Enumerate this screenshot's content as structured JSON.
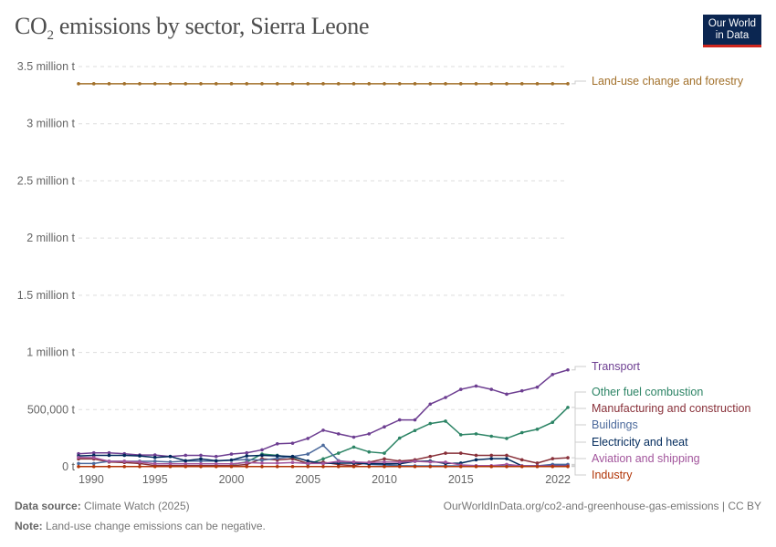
{
  "header": {
    "title_prefix": "CO",
    "title_sub": "2",
    "title_suffix": " emissions by sector, Sierra Leone",
    "logo_line1": "Our World",
    "logo_line2": "in Data"
  },
  "footer": {
    "source_label": "Data source:",
    "source_value": "Climate Watch (2025)",
    "url": "OurWorldInData.org/co2-and-greenhouse-gas-emissions | CC BY",
    "note_label": "Note:",
    "note_value": "Land-use change emissions can be negative."
  },
  "chart_data": {
    "type": "line",
    "title": "CO₂ emissions by sector, Sierra Leone",
    "xlabel": "",
    "ylabel": "",
    "ylim": [
      0,
      3500000
    ],
    "xlim": [
      1990,
      2022
    ],
    "grid": "horizontal dashed",
    "legend": "right (line-end labels)",
    "y_ticks": [
      {
        "value": 0,
        "label": "0 t"
      },
      {
        "value": 500000,
        "label": "500,000 t"
      },
      {
        "value": 1000000,
        "label": "1 million t"
      },
      {
        "value": 1500000,
        "label": "1.5 million t"
      },
      {
        "value": 2000000,
        "label": "2 million t"
      },
      {
        "value": 2500000,
        "label": "2.5 million t"
      },
      {
        "value": 3000000,
        "label": "3 million t"
      },
      {
        "value": 3500000,
        "label": "3.5 million t"
      }
    ],
    "x_ticks": [
      {
        "value": 1990,
        "label": "1990"
      },
      {
        "value": 1995,
        "label": "1995"
      },
      {
        "value": 2000,
        "label": "2000"
      },
      {
        "value": 2005,
        "label": "2005"
      },
      {
        "value": 2010,
        "label": "2010"
      },
      {
        "value": 2015,
        "label": "2015"
      },
      {
        "value": 2022,
        "label": "2022"
      }
    ],
    "x": [
      1990,
      1991,
      1992,
      1993,
      1994,
      1995,
      1996,
      1997,
      1998,
      1999,
      2000,
      2001,
      2002,
      2003,
      2004,
      2005,
      2006,
      2007,
      2008,
      2009,
      2010,
      2011,
      2012,
      2013,
      2014,
      2015,
      2016,
      2017,
      2018,
      2019,
      2020,
      2021,
      2022
    ],
    "series": [
      {
        "name": "Land-use change and forestry",
        "color": "#a2702a",
        "values": [
          3350000,
          3350000,
          3350000,
          3350000,
          3350000,
          3350000,
          3350000,
          3350000,
          3350000,
          3350000,
          3350000,
          3350000,
          3350000,
          3350000,
          3350000,
          3350000,
          3350000,
          3350000,
          3350000,
          3350000,
          3350000,
          3350000,
          3350000,
          3350000,
          3350000,
          3350000,
          3350000,
          3350000,
          3350000,
          3350000,
          3350000,
          3350000,
          3350000
        ]
      },
      {
        "name": "Transport",
        "color": "#6d3e91",
        "values": [
          114000,
          122000,
          122000,
          114000,
          103000,
          103000,
          90000,
          100000,
          100000,
          90000,
          111000,
          122000,
          148000,
          201000,
          206000,
          248000,
          320000,
          288000,
          259000,
          288000,
          349000,
          410000,
          410000,
          548000,
          606000,
          677000,
          706000,
          677000,
          635000,
          664000,
          696000,
          807000,
          847000
        ]
      },
      {
        "name": "Other fuel combustion",
        "color": "#2c8465",
        "values": [
          null,
          null,
          null,
          null,
          null,
          null,
          null,
          null,
          null,
          null,
          21000,
          42000,
          111000,
          100000,
          79000,
          21000,
          69000,
          119000,
          172000,
          130000,
          119000,
          251000,
          317000,
          378000,
          399000,
          280000,
          288000,
          267000,
          248000,
          299000,
          328000,
          389000,
          519000
        ]
      },
      {
        "name": "Manufacturing and construction",
        "color": "#883039",
        "values": [
          69000,
          69000,
          42000,
          37000,
          29000,
          10000,
          10000,
          10000,
          10000,
          10000,
          10000,
          20000,
          70000,
          60000,
          70000,
          30000,
          40000,
          20000,
          10000,
          40000,
          69000,
          50000,
          61000,
          90000,
          119000,
          119000,
          100000,
          100000,
          100000,
          61000,
          32000,
          71000,
          79000
        ]
      },
      {
        "name": "Buildings",
        "color": "#4c6a9c",
        "values": [
          29000,
          29000,
          48000,
          48000,
          48000,
          48000,
          42000,
          50000,
          50000,
          50000,
          58000,
          63000,
          58000,
          74000,
          90000,
          111000,
          188000,
          53000,
          40000,
          21000,
          16000,
          10000,
          8000,
          8000,
          8000,
          8000,
          8000,
          8000,
          8000,
          8000,
          8000,
          21000,
          21000
        ]
      },
      {
        "name": "Electricity and heat",
        "color": "#00295b",
        "values": [
          95000,
          100000,
          100000,
          100000,
          95000,
          82000,
          90000,
          53000,
          69000,
          53000,
          58000,
          95000,
          100000,
          95000,
          90000,
          50000,
          29000,
          32000,
          32000,
          26000,
          26000,
          26000,
          48000,
          50000,
          29000,
          32000,
          61000,
          71000,
          71000,
          8000,
          8000,
          10000,
          10000
        ]
      },
      {
        "name": "Aviation and shipping",
        "color": "#a2559c",
        "values": [
          82000,
          80000,
          48000,
          48000,
          42000,
          26000,
          26000,
          26000,
          26000,
          26000,
          26000,
          37000,
          32000,
          32000,
          37000,
          29000,
          29000,
          48000,
          42000,
          37000,
          42000,
          40000,
          48000,
          42000,
          40000,
          16000,
          10000,
          10000,
          21000,
          8000,
          8000,
          8000,
          8000
        ]
      },
      {
        "name": "Industry",
        "color": "#b13507",
        "values": [
          2000,
          2000,
          2000,
          2000,
          2000,
          2000,
          2000,
          2000,
          2000,
          2000,
          2000,
          2000,
          2000,
          2000,
          2000,
          2000,
          2000,
          2000,
          2000,
          2000,
          2000,
          2000,
          2000,
          2000,
          2000,
          2000,
          2000,
          2000,
          2000,
          2000,
          2000,
          2000,
          2000
        ]
      }
    ]
  }
}
